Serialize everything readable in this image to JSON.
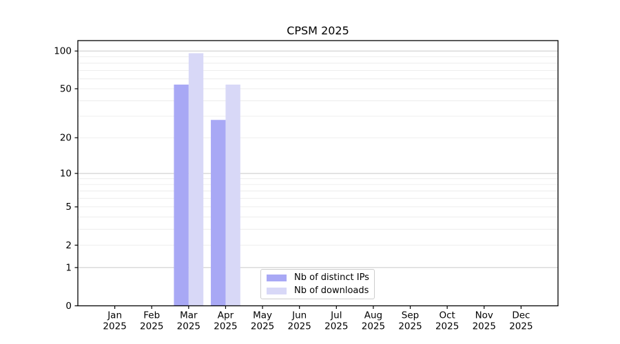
{
  "chart_data": {
    "type": "bar",
    "title": "CPSM 2025",
    "categories": [
      "Jan 2025",
      "Feb 2025",
      "Mar 2025",
      "Apr 2025",
      "May 2025",
      "Jun 2025",
      "Jul 2025",
      "Aug 2025",
      "Sep 2025",
      "Oct 2025",
      "Nov 2025",
      "Dec 2025"
    ],
    "series": [
      {
        "name": "Nb of distinct IPs",
        "color": "#a8a8f5",
        "values": [
          0,
          0,
          54,
          28,
          0,
          0,
          0,
          0,
          0,
          0,
          0,
          0
        ]
      },
      {
        "name": "Nb of downloads",
        "color": "#d8d8f7",
        "values": [
          0,
          0,
          96,
          54,
          0,
          0,
          0,
          0,
          0,
          0,
          0,
          0
        ]
      }
    ],
    "y_axis": {
      "scale": "log1p",
      "ticks": [
        0,
        1,
        2,
        5,
        10,
        20,
        50,
        100
      ],
      "max": 121
    },
    "x_axis": {
      "tick_year": "2025"
    },
    "grid": {
      "major_values": [
        1,
        10,
        100
      ],
      "minor_values": [
        2,
        3,
        4,
        5,
        6,
        7,
        8,
        9,
        20,
        30,
        40,
        50,
        60,
        70,
        80,
        90
      ],
      "major_color": "#c8c8c8",
      "minor_color": "#ececec"
    },
    "legend_position": "bottom-center",
    "colors": {
      "spine": "#000000",
      "text": "#000000",
      "background": "#ffffff",
      "legend_border": "#cccccc"
    }
  }
}
